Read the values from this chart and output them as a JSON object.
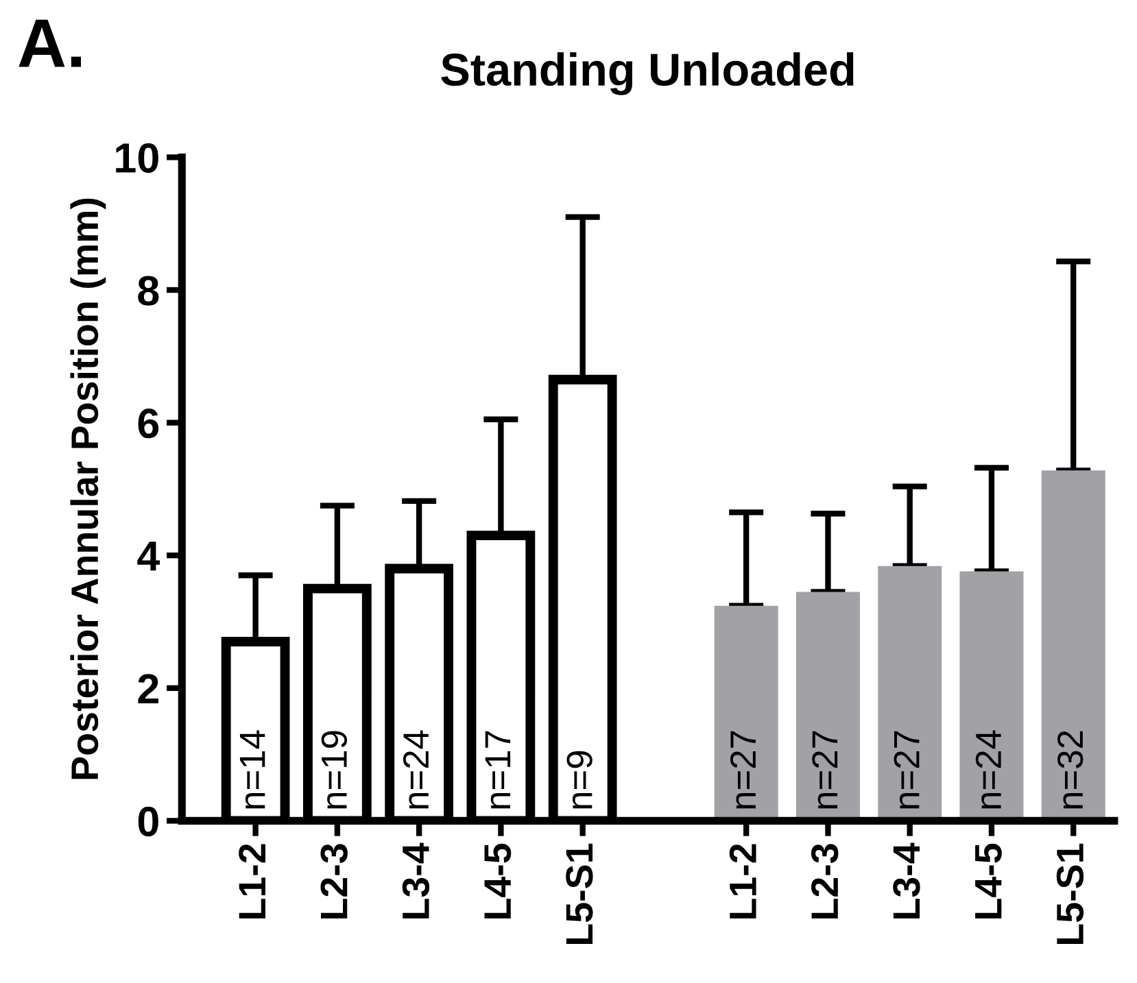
{
  "chart_data": {
    "type": "bar",
    "title": "Standing Unloaded",
    "ylabel": "Posterior Annular Position (mm)",
    "annotations": [
      "A.",
      "n=14",
      "n=19",
      "n=24",
      "n=17",
      "n=9",
      "n=27",
      "n=27",
      "n=27",
      "n=24",
      "n=32"
    ],
    "categories": [
      "L1-2",
      "L2-3",
      "L3-4",
      "L4-5",
      "L5-S1",
      null,
      "L1-2",
      "L2-3",
      "L3-4",
      "L4-5",
      "L5-S1"
    ],
    "series": [
      {
        "color": "#ffffff",
        "values": [
          2.7,
          3.5,
          3.8,
          4.3,
          6.65,
          null,
          null,
          null,
          null,
          null,
          null
        ],
        "errors": [
          [
            2.7,
            3.7
          ],
          [
            3.5,
            4.75
          ],
          [
            3.8,
            4.82
          ],
          [
            4.3,
            6.05
          ],
          [
            6.65,
            9.1
          ],
          null,
          null,
          null,
          null,
          null,
          null
        ]
      },
      {
        "color": "#a2a1a6",
        "values": [
          null,
          null,
          null,
          null,
          null,
          null,
          3.24,
          3.45,
          3.84,
          3.76,
          5.28
        ],
        "errors": [
          null,
          null,
          null,
          null,
          null,
          null,
          [
            3.24,
            4.65
          ],
          [
            3.45,
            4.63
          ],
          [
            3.84,
            5.04
          ],
          [
            3.76,
            5.32
          ],
          [
            5.28,
            8.43
          ]
        ]
      }
    ],
    "ylim": [
      0,
      10
    ],
    "yticks": [
      0,
      2,
      4,
      6,
      8,
      10
    ],
    "grid": false,
    "legend": false
  }
}
